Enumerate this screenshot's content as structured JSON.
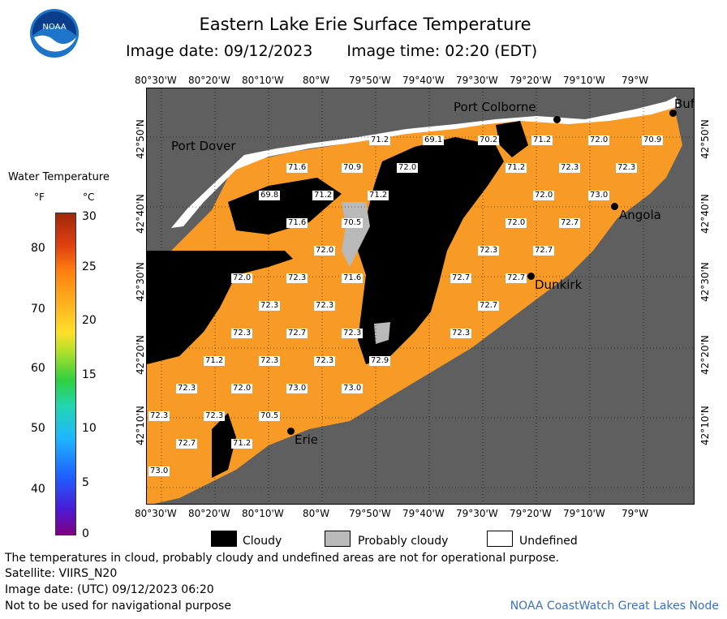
{
  "header": {
    "title": "Eastern Lake Erie Surface Temperature",
    "image_date": "Image date: 09/12/2023",
    "image_time": "Image time: 02:20 (EDT)"
  },
  "logo": {
    "text": "NOAA",
    "icon": "noaa-logo-icon"
  },
  "legend": {
    "title": "Water Temperature",
    "f_unit": "°F",
    "c_unit": "°C",
    "f_ticks": [
      "80",
      "70",
      "60",
      "50",
      "40"
    ],
    "c_ticks": [
      "30",
      "25",
      "20",
      "15",
      "10",
      "5",
      "0"
    ]
  },
  "axes": {
    "lon_labels": [
      "80°30'W",
      "80°20'W",
      "80°10'W",
      "80°W",
      "79°50'W",
      "79°40'W",
      "79°30'W",
      "79°20'W",
      "79°10'W",
      "79°W"
    ],
    "lat_labels": [
      "42°50'N",
      "42°40'N",
      "42°30'N",
      "42°20'N",
      "42°10'N"
    ]
  },
  "cities": [
    "Port Colborne",
    "Port Dover",
    "Angola",
    "Dunkirk",
    "Erie",
    "Buf"
  ],
  "temperatures": [
    "71.2",
    "69.1",
    "70.2",
    "71.2",
    "72.0",
    "70.9",
    "71.6",
    "70.9",
    "72.0",
    "71.2",
    "72.3",
    "72.3",
    "69.8",
    "71.2",
    "71.2",
    "72.0",
    "73.0",
    "71.6",
    "70.5",
    "72.0",
    "72.7",
    "72.0",
    "72.3",
    "72.7",
    "72.0",
    "72.3",
    "71.6",
    "72.7",
    "72.7",
    "72.3",
    "72.3",
    "72.7",
    "72.3",
    "72.7",
    "72.3",
    "72.3",
    "71.2",
    "72.3",
    "72.3",
    "72.9",
    "72.3",
    "72.0",
    "73.0",
    "73.0",
    "72.3",
    "72.3",
    "70.5",
    "72.7",
    "71.2",
    "73.0"
  ],
  "key": {
    "cloudy": "Cloudy",
    "probably_cloudy": "Probably cloudy",
    "undefined": "Undefined"
  },
  "footer": {
    "note": "The temperatures in cloud, probably cloudy and undefined areas are not for operational purpose.",
    "satellite": "Satellite: VIIRS_N20",
    "utc_date": "Image date: (UTC) 09/12/2023  06:20",
    "nav_warning": "Not to be used for navigational purpose",
    "credit": "NOAA CoastWatch Great Lakes Node"
  },
  "colors": {
    "land": "#5f5f5f",
    "water": "#f79a26",
    "cloudy": "#000000",
    "probably_cloudy": "#b9b9b9",
    "undefined": "#ffffff"
  }
}
